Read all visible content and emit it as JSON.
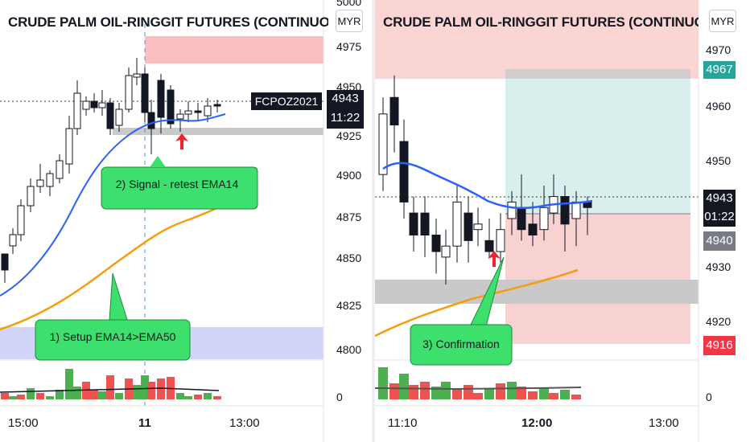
{
  "left_panel": {
    "title": "CRUDE PALM OIL-RINGGIT FUTURES (CONTINUOUS: C",
    "currency": "MYR",
    "y_labels": [
      "5000",
      "4975",
      "4950",
      "4925",
      "4900",
      "4875",
      "4850",
      "4825",
      "4800"
    ],
    "x_labels": [
      "15:00",
      "11",
      "13:00"
    ],
    "symbol_tag": "FCPOZ2021",
    "last_price": "4943",
    "countdown": "11:22",
    "callout_signal": "2) Signal - retest EMA14",
    "callout_setup": "1) Setup EMA14>EMA50",
    "volume_zero": "0",
    "colors": {
      "up": "#ffffff",
      "down": "#131722",
      "ema14": "#2962ff",
      "ema50": "#f59d0e",
      "resistance": "#f7a8a8",
      "setup_zone": "#c7c9f7",
      "support": "#c9c9c9",
      "callout": "#3ee06d",
      "arrow": "#f5222d"
    }
  },
  "right_panel": {
    "title": "CRUDE PALM OIL-RINGGIT FUTURES (CONTINUOUS: C",
    "currency": "MYR",
    "y_labels": [
      "4970",
      "4960",
      "4950",
      "4940",
      "4930",
      "4920",
      "0"
    ],
    "x_labels": [
      "11:10",
      "12:00",
      "13:00"
    ],
    "target_price": "4967",
    "last_price": "4943",
    "countdown": "01:22",
    "entry_price": "4940",
    "stop_price": "4916",
    "callout_confirmation": "3) Confirmation",
    "colors": {
      "target_box": "#4db6ac",
      "stop_box": "#ef9a9a",
      "target_label": "#26a69a",
      "entry_label": "#787b86",
      "stop_label": "#f23645"
    }
  }
}
